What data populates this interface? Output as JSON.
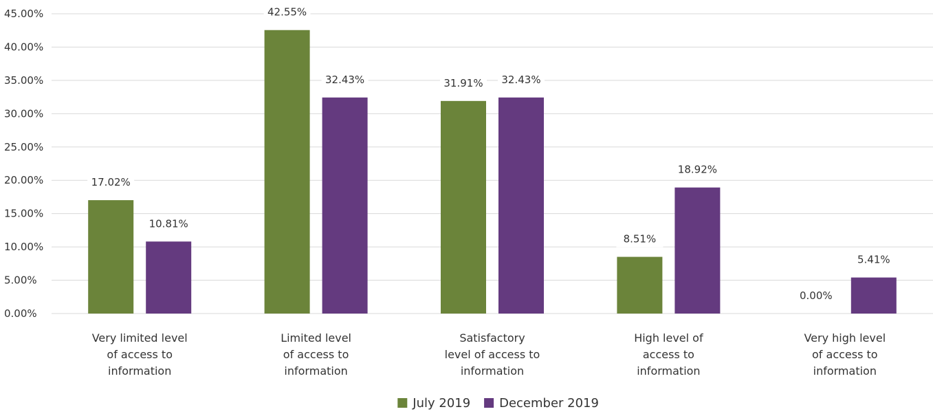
{
  "chart_data": {
    "type": "bar",
    "categories": [
      [
        "Very limited level",
        "of access to",
        "information"
      ],
      [
        "Limited level",
        "of access to",
        "information"
      ],
      [
        "Satisfactory",
        "level of access to",
        "information"
      ],
      [
        "High level of",
        "access to",
        "information"
      ],
      [
        "Very high level",
        "of access to",
        "information"
      ]
    ],
    "series": [
      {
        "name": "July 2019",
        "color": "#6b843a",
        "values": [
          17.02,
          42.55,
          31.91,
          8.51,
          0.0
        ],
        "labels": [
          "17.02%",
          "42.55%",
          "31.91%",
          "8.51%",
          "0.00%"
        ]
      },
      {
        "name": "December 2019",
        "color": "#643a7f",
        "values": [
          10.81,
          32.43,
          32.43,
          18.92,
          5.41
        ],
        "labels": [
          "10.81%",
          "32.43%",
          "32.43%",
          "18.92%",
          "5.41%"
        ]
      }
    ],
    "ylim": [
      0,
      45
    ],
    "yticks": [
      0,
      5,
      10,
      15,
      20,
      25,
      30,
      35,
      40,
      45
    ],
    "ytick_labels": [
      "0.00%",
      "5.00%",
      "10.00%",
      "15.00%",
      "20.00%",
      "25.00%",
      "30.00%",
      "35.00%",
      "40.00%",
      "45.00%"
    ],
    "grid": true,
    "legend_position": "bottom-center"
  }
}
